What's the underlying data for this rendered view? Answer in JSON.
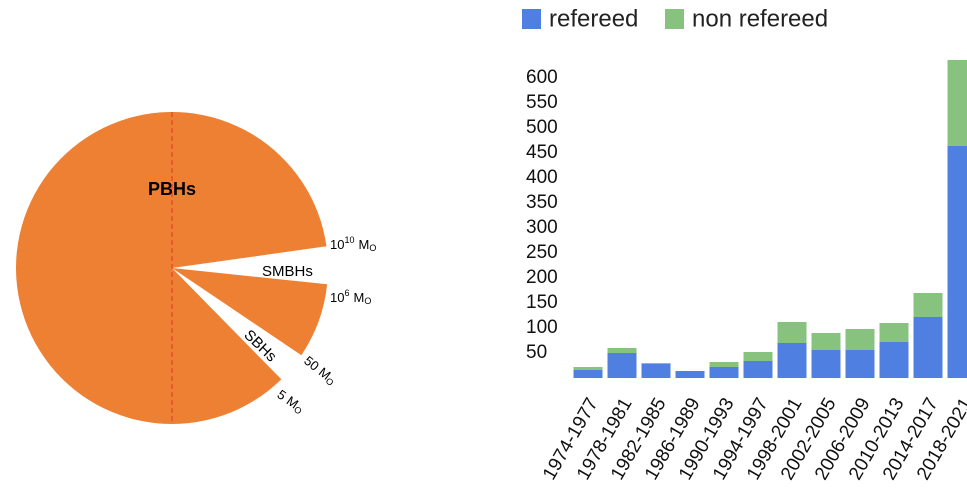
{
  "diagram": {
    "regions": [
      "PBHs",
      "SMBHs",
      "SBHs"
    ],
    "mass_labels": [
      {
        "base": "10",
        "exp": "10",
        "unit": "M",
        "sub": "O"
      },
      {
        "base": "10",
        "exp": "6",
        "unit": "M",
        "sub": "O"
      },
      {
        "base": "50",
        "unit": "M",
        "sub": "O"
      },
      {
        "base": "5",
        "unit": "M",
        "sub": "O"
      }
    ]
  },
  "chart_data": {
    "type": "stacked-bar",
    "categories": [
      "1974-1977",
      "1978-1981",
      "1982-1985",
      "1986-1989",
      "1990-1993",
      "1994-1997",
      "1998-2001",
      "2002-2005",
      "2006-2009",
      "2010-2013",
      "2014-2017",
      "2018-2021"
    ],
    "series": [
      {
        "name": "refereed",
        "color": "#4f80e1",
        "values": [
          16,
          50,
          28,
          14,
          22,
          34,
          70,
          56,
          56,
          72,
          122,
          464
        ]
      },
      {
        "name": "non refereed",
        "color": "#87c27f",
        "values": [
          6,
          10,
          2,
          0,
          10,
          18,
          42,
          34,
          42,
          38,
          48,
          172
        ]
      }
    ],
    "ylim": [
      0,
      650
    ],
    "yticks": [
      50,
      100,
      150,
      200,
      250,
      300,
      350,
      400,
      450,
      500,
      550,
      600
    ],
    "grid": false,
    "legend": "top"
  }
}
